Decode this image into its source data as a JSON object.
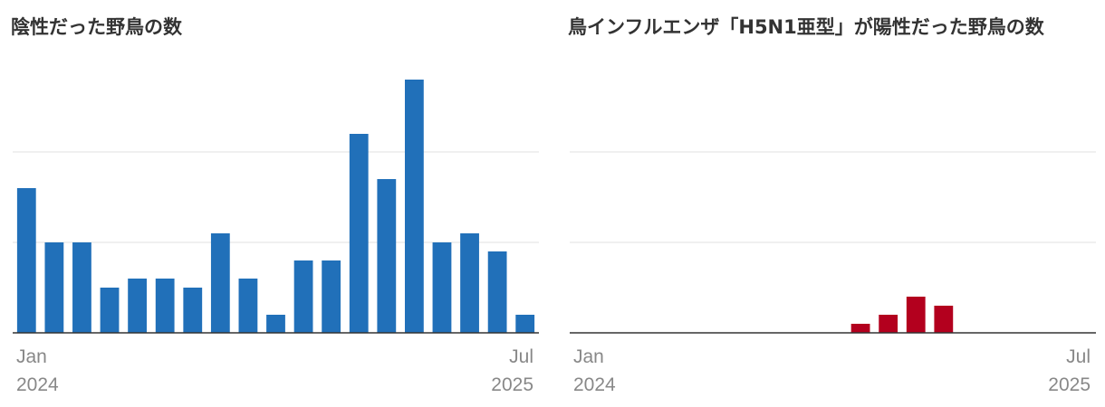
{
  "chart_data": [
    {
      "type": "bar",
      "title": "陰性だった野鳥の数",
      "color": "#2170b9",
      "categories": [
        "Jan",
        null,
        null,
        null,
        null,
        null,
        null,
        null,
        null,
        null,
        null,
        null,
        null,
        null,
        null,
        null,
        null,
        null,
        "Jul"
      ],
      "category_years": [
        "2024",
        null,
        null,
        null,
        null,
        null,
        null,
        null,
        null,
        null,
        null,
        null,
        null,
        null,
        null,
        null,
        null,
        null,
        "2025"
      ],
      "values": [
        16,
        10,
        10,
        5,
        6,
        6,
        5,
        11,
        6,
        2,
        8,
        8,
        22,
        17,
        28,
        10,
        11,
        9,
        2
      ],
      "ylim": [
        0,
        30
      ],
      "yticks": [
        0,
        10,
        20
      ],
      "grid": true
    },
    {
      "type": "bar",
      "title": "鳥インフルエンザ「H5N1亜型」が陽性だった野鳥の数",
      "color": "#b3001e",
      "categories": [
        "Jan",
        null,
        null,
        null,
        null,
        null,
        null,
        null,
        null,
        null,
        null,
        null,
        null,
        null,
        null,
        null,
        null,
        null,
        "Jul"
      ],
      "category_years": [
        "2024",
        null,
        null,
        null,
        null,
        null,
        null,
        null,
        null,
        null,
        null,
        null,
        null,
        null,
        null,
        null,
        null,
        null,
        "2025"
      ],
      "values": [
        0,
        0,
        0,
        0,
        0,
        0,
        0,
        0,
        0,
        0,
        1,
        2,
        4,
        3,
        0,
        0,
        0,
        0,
        0
      ],
      "ylim": [
        0,
        30
      ],
      "yticks": [
        0,
        10,
        20
      ],
      "grid": true
    }
  ]
}
